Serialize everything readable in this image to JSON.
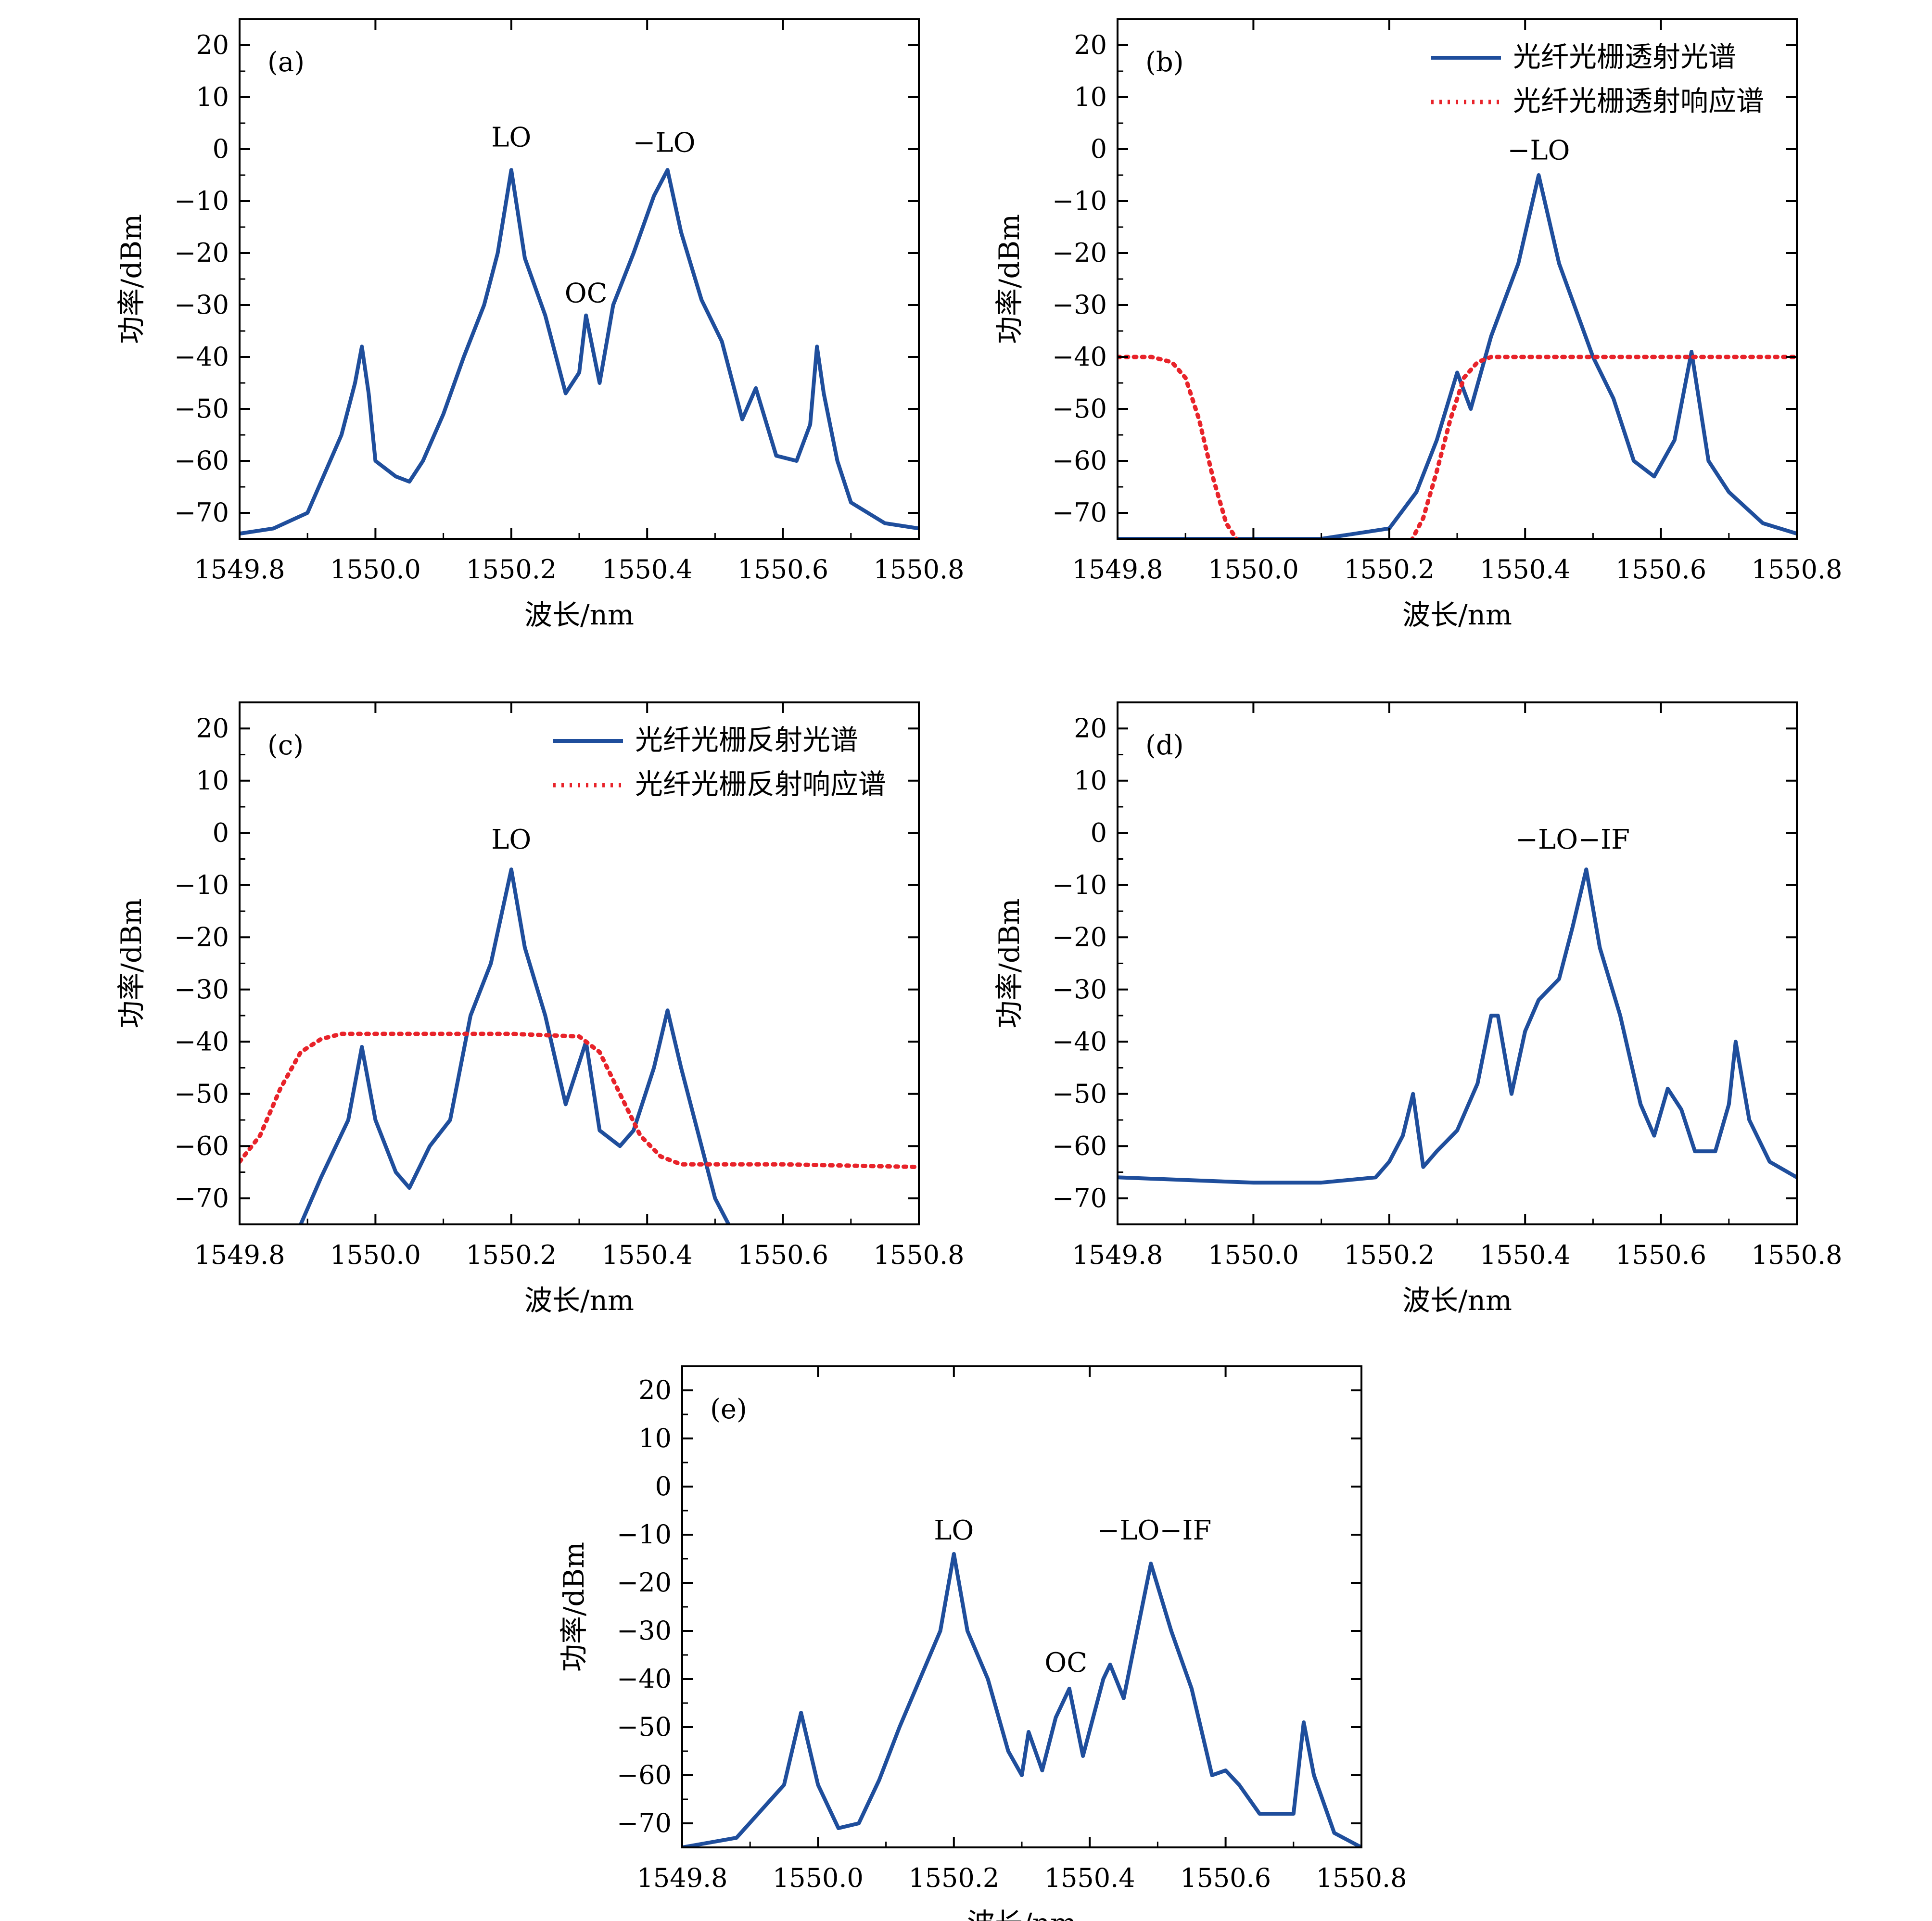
{
  "chart_data": [
    {
      "id": "a",
      "type": "line",
      "panel_label": "(a)",
      "xlabel": "波长/nm",
      "ylabel": "功率/dBm",
      "xlim": [
        1549.8,
        1550.8
      ],
      "ylim": [
        -75,
        25
      ],
      "xticks": [
        "1549.8",
        "1550.0",
        "1550.2",
        "1550.4",
        "1550.6",
        "1550.8"
      ],
      "yticks": [
        "20",
        "10",
        "0",
        "−10",
        "−20",
        "−30",
        "−40",
        "−50",
        "−60",
        "−70"
      ],
      "legend": [],
      "annotations": [
        {
          "text": "LO",
          "x": 1550.2,
          "y": 0.5
        },
        {
          "text": "OC",
          "x": 1550.31,
          "y": -29.5
        },
        {
          "text": "−LO",
          "x": 1550.425,
          "y": -0.5
        }
      ],
      "series": [
        {
          "name": "spectrum",
          "style": "solid",
          "color": "#1f4e9c",
          "x": [
            1549.8,
            1549.85,
            1549.9,
            1549.95,
            1549.97,
            1549.98,
            1549.99,
            1550.0,
            1550.03,
            1550.05,
            1550.07,
            1550.1,
            1550.13,
            1550.16,
            1550.18,
            1550.2,
            1550.22,
            1550.25,
            1550.28,
            1550.3,
            1550.31,
            1550.33,
            1550.35,
            1550.38,
            1550.41,
            1550.43,
            1550.45,
            1550.48,
            1550.51,
            1550.54,
            1550.56,
            1550.59,
            1550.62,
            1550.64,
            1550.65,
            1550.66,
            1550.68,
            1550.7,
            1550.75,
            1550.8
          ],
          "y": [
            -74,
            -73,
            -70,
            -55,
            -45,
            -38,
            -47,
            -60,
            -63,
            -64,
            -60,
            -51,
            -40,
            -30,
            -20,
            -4,
            -21,
            -32,
            -47,
            -43,
            -32,
            -45,
            -30,
            -20,
            -9,
            -4,
            -16,
            -29,
            -37,
            -52,
            -46,
            -59,
            -60,
            -53,
            -38,
            -47,
            -60,
            -68,
            -72,
            -73
          ]
        }
      ]
    },
    {
      "id": "b",
      "type": "line",
      "panel_label": "(b)",
      "xlabel": "波长/nm",
      "ylabel": "功率/dBm",
      "xlim": [
        1549.8,
        1550.8
      ],
      "ylim": [
        -75,
        25
      ],
      "xticks": [
        "1549.8",
        "1550.0",
        "1550.2",
        "1550.4",
        "1550.6",
        "1550.8"
      ],
      "yticks": [
        "20",
        "10",
        "0",
        "−10",
        "−20",
        "−30",
        "−40",
        "−50",
        "−60",
        "−70"
      ],
      "legend": [
        "光纤光栅透射光谱",
        "光纤光栅透射响应谱"
      ],
      "annotations": [
        {
          "text": "−LO",
          "x": 1550.42,
          "y": -2
        }
      ],
      "series": [
        {
          "name": "光纤光栅透射光谱",
          "style": "solid",
          "color": "#1f4e9c",
          "x": [
            1549.8,
            1549.9,
            1550.0,
            1550.1,
            1550.2,
            1550.24,
            1550.27,
            1550.3,
            1550.32,
            1550.35,
            1550.39,
            1550.42,
            1550.45,
            1550.5,
            1550.53,
            1550.56,
            1550.59,
            1550.62,
            1550.645,
            1550.67,
            1550.7,
            1550.75,
            1550.8
          ],
          "y": [
            -75,
            -75,
            -75,
            -75,
            -73,
            -66,
            -56,
            -43,
            -50,
            -36,
            -22,
            -5,
            -22,
            -40,
            -48,
            -60,
            -63,
            -56,
            -39,
            -60,
            -66,
            -72,
            -74
          ]
        },
        {
          "name": "光纤光栅透射响应谱",
          "style": "dotted",
          "color": "#e8232a",
          "x": [
            1549.8,
            1549.85,
            1549.88,
            1549.9,
            1549.92,
            1549.94,
            1549.96,
            1549.98,
            1550.0,
            1550.23,
            1550.25,
            1550.27,
            1550.29,
            1550.31,
            1550.33,
            1550.35,
            1550.4,
            1550.5,
            1550.8
          ],
          "y": [
            -40,
            -40,
            -41,
            -44,
            -52,
            -63,
            -72,
            -76,
            -76,
            -76,
            -71,
            -62,
            -52,
            -44,
            -41,
            -40,
            -40,
            -40,
            -40
          ]
        }
      ]
    },
    {
      "id": "c",
      "type": "line",
      "panel_label": "(c)",
      "xlabel": "波长/nm",
      "ylabel": "功率/dBm",
      "xlim": [
        1549.8,
        1550.8
      ],
      "ylim": [
        -75,
        25
      ],
      "xticks": [
        "1549.8",
        "1550.0",
        "1550.2",
        "1550.4",
        "1550.6",
        "1550.8"
      ],
      "yticks": [
        "20",
        "10",
        "0",
        "−10",
        "−20",
        "−30",
        "−40",
        "−50",
        "−60",
        "−70"
      ],
      "legend": [
        "光纤光栅反射光谱",
        "光纤光栅反射响应谱"
      ],
      "annotations": [
        {
          "text": "LO",
          "x": 1550.2,
          "y": -3
        }
      ],
      "series": [
        {
          "name": "光纤光栅反射光谱",
          "style": "solid",
          "color": "#1f4e9c",
          "x": [
            1549.89,
            1549.92,
            1549.96,
            1549.98,
            1550.0,
            1550.03,
            1550.05,
            1550.08,
            1550.11,
            1550.14,
            1550.17,
            1550.2,
            1550.22,
            1550.25,
            1550.28,
            1550.3,
            1550.31,
            1550.33,
            1550.36,
            1550.38,
            1550.41,
            1550.43,
            1550.45,
            1550.48,
            1550.5,
            1550.52
          ],
          "y": [
            -75,
            -66,
            -55,
            -41,
            -55,
            -65,
            -68,
            -60,
            -55,
            -35,
            -25,
            -7,
            -22,
            -35,
            -52,
            -44,
            -40,
            -57,
            -60,
            -57,
            -45,
            -34,
            -45,
            -60,
            -70,
            -75
          ]
        },
        {
          "name": "光纤光栅反射响应谱",
          "style": "dotted",
          "color": "#e8232a",
          "x": [
            1549.8,
            1549.83,
            1549.86,
            1549.89,
            1549.92,
            1549.95,
            1550.0,
            1550.2,
            1550.3,
            1550.33,
            1550.36,
            1550.39,
            1550.42,
            1550.45,
            1550.5,
            1550.6,
            1550.8
          ],
          "y": [
            -63,
            -58,
            -49,
            -42,
            -39.5,
            -38.5,
            -38.5,
            -38.5,
            -39,
            -42,
            -50,
            -58,
            -62,
            -63.5,
            -63.5,
            -63.5,
            -64
          ]
        }
      ]
    },
    {
      "id": "d",
      "type": "line",
      "panel_label": "(d)",
      "xlabel": "波长/nm",
      "ylabel": "功率/dBm",
      "xlim": [
        1549.8,
        1550.8
      ],
      "ylim": [
        -75,
        25
      ],
      "xticks": [
        "1549.8",
        "1550.0",
        "1550.2",
        "1550.4",
        "1550.6",
        "1550.8"
      ],
      "yticks": [
        "20",
        "10",
        "0",
        "−10",
        "−20",
        "−30",
        "−40",
        "−50",
        "−60",
        "−70"
      ],
      "legend": [],
      "annotations": [
        {
          "text": "−LO−IF",
          "x": 1550.47,
          "y": -3
        }
      ],
      "series": [
        {
          "name": "spectrum",
          "style": "solid",
          "color": "#1f4e9c",
          "x": [
            1549.8,
            1549.9,
            1550.0,
            1550.1,
            1550.18,
            1550.2,
            1550.22,
            1550.235,
            1550.25,
            1550.27,
            1550.3,
            1550.33,
            1550.35,
            1550.36,
            1550.38,
            1550.4,
            1550.42,
            1550.45,
            1550.47,
            1550.49,
            1550.51,
            1550.54,
            1550.57,
            1550.59,
            1550.61,
            1550.63,
            1550.65,
            1550.68,
            1550.7,
            1550.71,
            1550.73,
            1550.76,
            1550.8
          ],
          "y": [
            -66,
            -66.5,
            -67,
            -67,
            -66,
            -63,
            -58,
            -50,
            -64,
            -61,
            -57,
            -48,
            -35,
            -35,
            -50,
            -38,
            -32,
            -28,
            -18,
            -7,
            -22,
            -35,
            -52,
            -58,
            -49,
            -53,
            -61,
            -61,
            -52,
            -40,
            -55,
            -63,
            -66
          ]
        }
      ]
    },
    {
      "id": "e",
      "type": "line",
      "panel_label": "(e)",
      "xlabel": "波长/nm",
      "ylabel": "功率/dBm",
      "xlim": [
        1549.8,
        1550.8
      ],
      "ylim": [
        -75,
        25
      ],
      "xticks": [
        "1549.8",
        "1550.0",
        "1550.2",
        "1550.4",
        "1550.6",
        "1550.8"
      ],
      "yticks": [
        "20",
        "10",
        "0",
        "−10",
        "−20",
        "−30",
        "−40",
        "−50",
        "−60",
        "−70"
      ],
      "legend": [],
      "annotations": [
        {
          "text": "LO",
          "x": 1550.2,
          "y": -11
        },
        {
          "text": "OC",
          "x": 1550.365,
          "y": -38.5
        },
        {
          "text": "−LO−IF",
          "x": 1550.495,
          "y": -11
        }
      ],
      "series": [
        {
          "name": "spectrum",
          "style": "solid",
          "color": "#1f4e9c",
          "x": [
            1549.8,
            1549.88,
            1549.95,
            1549.975,
            1550.0,
            1550.03,
            1550.06,
            1550.09,
            1550.12,
            1550.15,
            1550.18,
            1550.2,
            1550.22,
            1550.25,
            1550.28,
            1550.3,
            1550.31,
            1550.33,
            1550.35,
            1550.37,
            1550.39,
            1550.42,
            1550.43,
            1550.45,
            1550.47,
            1550.49,
            1550.52,
            1550.55,
            1550.58,
            1550.6,
            1550.62,
            1550.65,
            1550.7,
            1550.715,
            1550.73,
            1550.76,
            1550.8
          ],
          "y": [
            -75,
            -73,
            -62,
            -47,
            -62,
            -71,
            -70,
            -61,
            -50,
            -40,
            -30,
            -14,
            -30,
            -40,
            -55,
            -60,
            -51,
            -59,
            -48,
            -42,
            -56,
            -40,
            -37,
            -44,
            -30,
            -16,
            -30,
            -42,
            -60,
            -59,
            -62,
            -68,
            -68,
            -49,
            -60,
            -72,
            -75
          ]
        }
      ]
    }
  ]
}
